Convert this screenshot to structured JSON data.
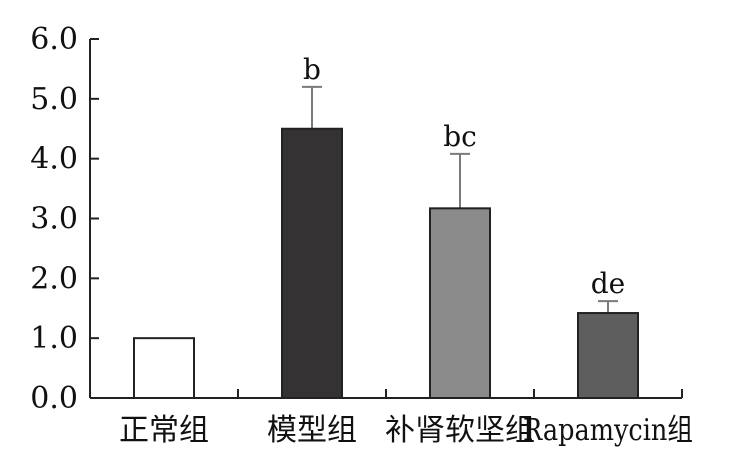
{
  "chart_data": {
    "type": "bar",
    "categories": [
      "正常组",
      "模型组",
      "补肾软坚组",
      "Rapamycin组"
    ],
    "values": [
      1.0,
      4.5,
      3.17,
      1.42
    ],
    "error_upper": [
      1.0,
      5.2,
      4.08,
      1.62
    ],
    "significance_labels": [
      "",
      "b",
      "bc",
      "de"
    ],
    "bar_colors": [
      "#ffffff",
      "#353233",
      "#8b8b8b",
      "#5e5e5e"
    ],
    "ylim": [
      0.0,
      6.0
    ],
    "yticks": [
      "0.0",
      "1.0",
      "2.0",
      "3.0",
      "4.0",
      "5.0",
      "6.0"
    ],
    "title": "",
    "xlabel": "",
    "ylabel": "",
    "grid": false
  }
}
